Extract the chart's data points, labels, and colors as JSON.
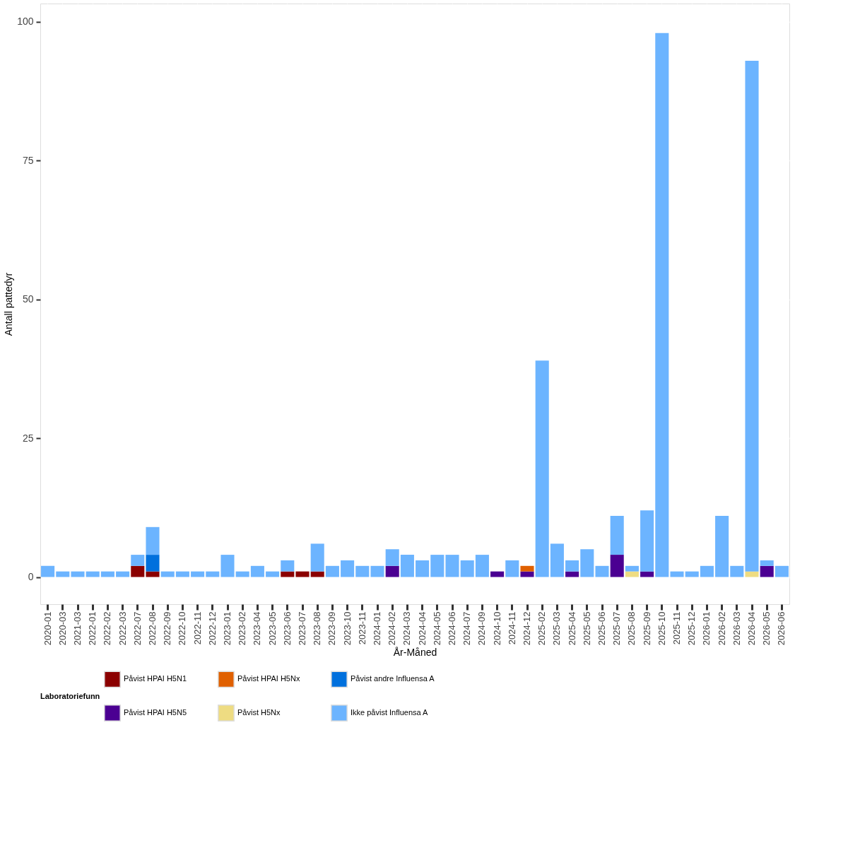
{
  "chart_data": {
    "type": "bar",
    "stacked": true,
    "xlabel": "År-Måned",
    "ylabel": "Antall pattedyr",
    "legend_title": "Laboratoriefunn",
    "legend": "bottom",
    "grid": true,
    "categories": [
      "2020-01",
      "2020-03",
      "2021-03",
      "2022-01",
      "2022-02",
      "2022-03",
      "2022-07",
      "2022-08",
      "2022-09",
      "2022-10",
      "2022-11",
      "2022-12",
      "2023-01",
      "2023-02",
      "2023-04",
      "2023-05",
      "2023-06",
      "2023-07",
      "2023-08",
      "2023-09",
      "2023-10",
      "2023-11",
      "2024-01",
      "2024-02",
      "2024-03",
      "2024-04",
      "2024-05",
      "2024-06",
      "2024-07",
      "2024-09",
      "2024-10",
      "2024-11",
      "2024-12",
      "2025-02",
      "2025-03",
      "2025-04",
      "2025-05",
      "2025-06",
      "2025-07",
      "2025-08",
      "2025-09",
      "2025-10",
      "2025-11",
      "2025-12",
      "2026-01",
      "2026-02",
      "2026-03",
      "2026-04",
      "2026-05",
      "2026-06"
    ],
    "ylim": [
      -4.9,
      103.3
    ],
    "yticks": [
      0,
      25,
      50,
      75,
      100
    ],
    "series": [
      {
        "name": "Påvist HPAI H5N1",
        "color": "#8b0000",
        "values": [
          null,
          null,
          null,
          null,
          null,
          null,
          2,
          1,
          null,
          null,
          null,
          null,
          null,
          null,
          null,
          null,
          1,
          1,
          1,
          null,
          null,
          null,
          null,
          null,
          null,
          null,
          null,
          null,
          null,
          null,
          null,
          null,
          null,
          null,
          null,
          null,
          null,
          null,
          null,
          null,
          null,
          null,
          null,
          null,
          null,
          null,
          null,
          null,
          null,
          null
        ]
      },
      {
        "name": "Påvist HPAI H5N5",
        "color": "#4b0092",
        "values": [
          null,
          null,
          null,
          null,
          null,
          null,
          null,
          null,
          null,
          null,
          null,
          null,
          null,
          null,
          null,
          null,
          null,
          null,
          null,
          null,
          null,
          null,
          null,
          2,
          null,
          null,
          null,
          null,
          null,
          null,
          1,
          null,
          1,
          null,
          null,
          1,
          null,
          null,
          4,
          null,
          1,
          null,
          null,
          null,
          null,
          null,
          null,
          null,
          2,
          null
        ]
      },
      {
        "name": "Påvist HPAI H5Nx",
        "color": "#e06000",
        "values": [
          null,
          null,
          null,
          null,
          null,
          null,
          null,
          null,
          null,
          null,
          null,
          null,
          null,
          null,
          null,
          null,
          null,
          null,
          null,
          null,
          null,
          null,
          null,
          null,
          null,
          null,
          null,
          null,
          null,
          null,
          null,
          null,
          1,
          null,
          null,
          null,
          null,
          null,
          null,
          null,
          null,
          null,
          null,
          null,
          null,
          null,
          null,
          null,
          null,
          null
        ]
      },
      {
        "name": "Påvist H5Nx",
        "color": "#eedc82",
        "values": [
          null,
          null,
          null,
          null,
          null,
          null,
          null,
          null,
          null,
          null,
          null,
          null,
          null,
          null,
          null,
          null,
          null,
          null,
          null,
          null,
          null,
          null,
          null,
          null,
          null,
          null,
          null,
          null,
          null,
          null,
          null,
          null,
          null,
          null,
          null,
          null,
          null,
          null,
          null,
          1,
          null,
          null,
          null,
          null,
          null,
          null,
          null,
          1,
          null,
          null
        ]
      },
      {
        "name": "Påvist andre Influensa A",
        "color": "#0070dd",
        "values": [
          null,
          null,
          null,
          null,
          null,
          null,
          null,
          3,
          null,
          null,
          null,
          null,
          null,
          null,
          null,
          null,
          null,
          null,
          null,
          null,
          null,
          null,
          null,
          null,
          null,
          null,
          null,
          null,
          null,
          null,
          null,
          null,
          null,
          null,
          null,
          null,
          null,
          null,
          null,
          null,
          null,
          null,
          null,
          null,
          null,
          null,
          null,
          null,
          null,
          null
        ]
      },
      {
        "name": "Ikke påvist Influensa A",
        "color": "#6cb4ff",
        "values": [
          2,
          1,
          1,
          1,
          1,
          1,
          2,
          5,
          1,
          1,
          1,
          1,
          4,
          1,
          2,
          1,
          2,
          null,
          5,
          2,
          3,
          2,
          2,
          3,
          4,
          3,
          4,
          4,
          3,
          4,
          null,
          3,
          null,
          39,
          6,
          2,
          5,
          2,
          7,
          1,
          11,
          98,
          1,
          1,
          2,
          11,
          2,
          92,
          1,
          2
        ]
      }
    ]
  }
}
